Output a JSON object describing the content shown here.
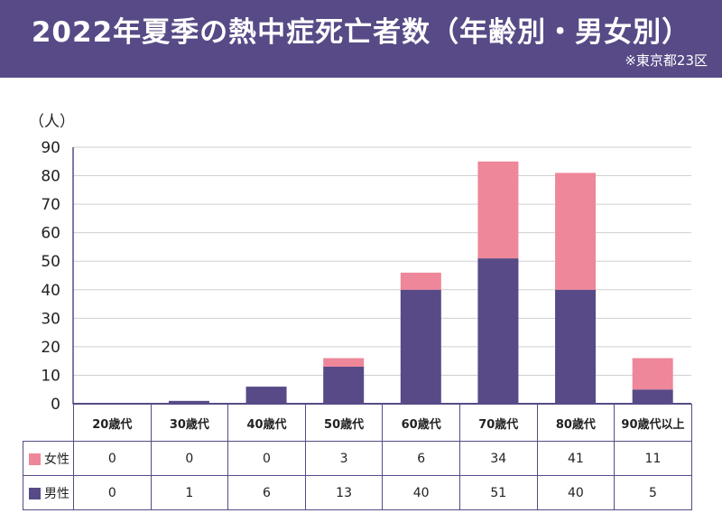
{
  "title": "2022年夏季の熱中症死亡者数（年齢別・男女別）",
  "subtitle": "※東京都23区",
  "colors": {
    "header": "#584a86",
    "female": "#ee8799",
    "male": "#574a87",
    "grid": "#cfcfcf"
  },
  "chart_data": {
    "type": "bar",
    "stacked": true,
    "ylabel": "（人）",
    "ylim": [
      0,
      90
    ],
    "yticks": [
      "0",
      "10",
      "20",
      "30",
      "40",
      "50",
      "60",
      "70",
      "80",
      "90"
    ],
    "categories": [
      "20歳代",
      "30歳代",
      "40歳代",
      "50歳代",
      "60歳代",
      "70歳代",
      "80歳代",
      "90歳代以上"
    ],
    "series": [
      {
        "name": "男性",
        "color": "#574a87",
        "values": [
          0,
          1,
          6,
          13,
          40,
          51,
          40,
          5
        ]
      },
      {
        "name": "女性",
        "color": "#ee8799",
        "values": [
          0,
          0,
          0,
          3,
          6,
          34,
          41,
          11
        ]
      }
    ],
    "grid": true,
    "legend": "table-left"
  }
}
